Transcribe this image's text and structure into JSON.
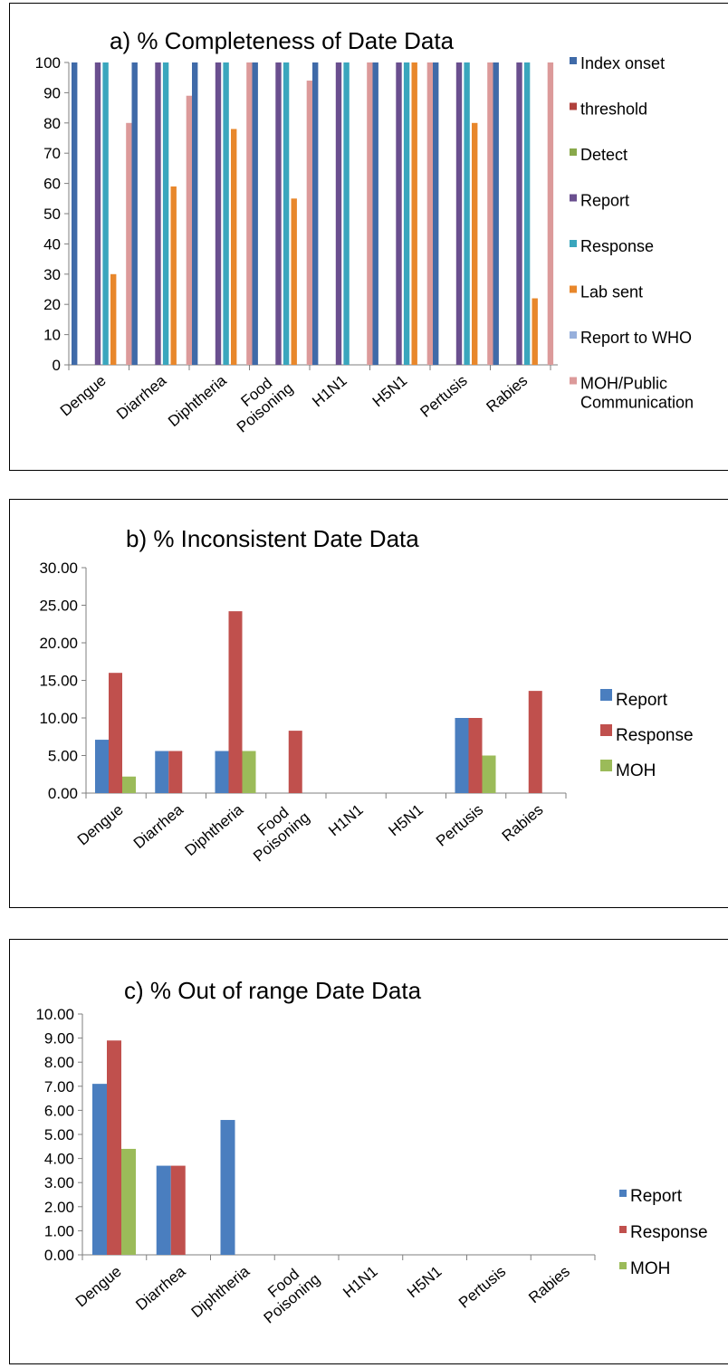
{
  "chart_data": [
    {
      "type": "bar",
      "title": "a) % Completeness of Date Data",
      "xlabel": "",
      "ylabel": "",
      "ylim": [
        0,
        100
      ],
      "yticks": [
        "0",
        "10",
        "20",
        "30",
        "40",
        "50",
        "60",
        "70",
        "80",
        "90",
        "100"
      ],
      "categories": [
        "Dengue",
        "Diarrhea",
        "Diphtheria",
        "Food Poisoning",
        "H1N1",
        "H5N1",
        "Pertusis",
        "Rabies"
      ],
      "legend_position": "right",
      "series": [
        {
          "name": "Index onset",
          "color": "#3f6aa8",
          "values": [
            100,
            100,
            100,
            100,
            100,
            100,
            100,
            100
          ]
        },
        {
          "name": "threshold",
          "color": "#b0403c",
          "values": [
            0,
            0,
            0,
            0,
            0,
            0,
            0,
            0
          ]
        },
        {
          "name": "Detect",
          "color": "#89a94b",
          "values": [
            0,
            0,
            0,
            0,
            0,
            0,
            0,
            0
          ]
        },
        {
          "name": "Report",
          "color": "#6a4f8f",
          "values": [
            100,
            100,
            100,
            100,
            100,
            100,
            100,
            100
          ]
        },
        {
          "name": "Response",
          "color": "#3aa6bd",
          "values": [
            100,
            100,
            100,
            100,
            100,
            100,
            100,
            100
          ]
        },
        {
          "name": "Lab sent",
          "color": "#e8872b",
          "values": [
            30,
            59,
            78,
            55,
            0,
            100,
            80,
            22
          ]
        },
        {
          "name": "Report to WHO",
          "color": "#97b0dc",
          "values": [
            0,
            0,
            0,
            0,
            0,
            0,
            0,
            0
          ]
        },
        {
          "name": "MOH/Public Communication",
          "color": "#dc9a9a",
          "values": [
            80,
            89,
            100,
            94,
            100,
            100,
            100,
            100
          ]
        }
      ]
    },
    {
      "type": "bar",
      "title": "b) % Inconsistent Date Data",
      "xlabel": "",
      "ylabel": "",
      "ylim": [
        0,
        30
      ],
      "yticks": [
        "0.00",
        "5.00",
        "10.00",
        "15.00",
        "20.00",
        "25.00",
        "30.00"
      ],
      "categories": [
        "Dengue",
        "Diarrhea",
        "Diphtheria",
        "Food Poisoning",
        "H1N1",
        "H5N1",
        "Pertusis",
        "Rabies"
      ],
      "legend_position": "right",
      "series": [
        {
          "name": "Report",
          "color": "#4a7ebf",
          "values": [
            7.1,
            5.6,
            5.6,
            0,
            0,
            0,
            10.0,
            0
          ]
        },
        {
          "name": "Response",
          "color": "#c0504d",
          "values": [
            16.0,
            5.6,
            24.2,
            8.3,
            0,
            0,
            10.0,
            13.6
          ]
        },
        {
          "name": "MOH",
          "color": "#9bbb59",
          "values": [
            2.2,
            0,
            5.6,
            0,
            0,
            0,
            5.0,
            0
          ]
        }
      ]
    },
    {
      "type": "bar",
      "title": "c) % Out of range Date Data",
      "xlabel": "",
      "ylabel": "",
      "ylim": [
        0,
        10
      ],
      "yticks": [
        "0.00",
        "1.00",
        "2.00",
        "3.00",
        "4.00",
        "5.00",
        "6.00",
        "7.00",
        "8.00",
        "9.00",
        "10.00"
      ],
      "categories": [
        "Dengue",
        "Diarrhea",
        "Diphtheria",
        "Food Poisoning",
        "H1N1",
        "H5N1",
        "Pertusis",
        "Rabies"
      ],
      "legend_position": "right",
      "series": [
        {
          "name": "Report",
          "color": "#4a7ebf",
          "values": [
            7.1,
            3.7,
            5.6,
            0,
            0,
            0,
            0,
            0
          ]
        },
        {
          "name": "Response",
          "color": "#c0504d",
          "values": [
            8.9,
            3.7,
            0,
            0,
            0,
            0,
            0,
            0
          ]
        },
        {
          "name": "MOH",
          "color": "#9bbb59",
          "values": [
            4.4,
            0,
            0,
            0,
            0,
            0,
            0,
            0
          ]
        }
      ]
    }
  ]
}
